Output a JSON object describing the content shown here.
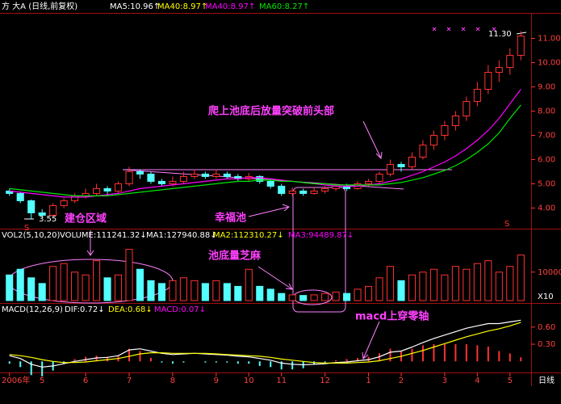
{
  "chart_data": [
    {
      "type": "candlestick",
      "title": "方  大A (日线,前复权)",
      "indicators": [
        {
          "label": "MA5:10.96↑",
          "color": "#ffffff"
        },
        {
          "label": "MA40:8.97↑",
          "color": "#ffff00"
        },
        {
          "label": "MA40:8.97↑",
          "color": "#ff00ff"
        },
        {
          "label": "MA60:8.27↑",
          "color": "#00e600"
        }
      ],
      "categories": [
        "2006年",
        null,
        null,
        "5",
        null,
        null,
        null,
        "6",
        null,
        null,
        null,
        "7",
        null,
        null,
        null,
        "8",
        null,
        null,
        null,
        "9",
        null,
        null,
        "10",
        null,
        null,
        "11",
        null,
        null,
        null,
        "12",
        null,
        null,
        null,
        "1",
        null,
        null,
        "2",
        null,
        null,
        null,
        "3",
        null,
        null,
        "4",
        null,
        null,
        "5",
        null
      ],
      "period_label": "日线",
      "up_color": "#ff3232",
      "down_color": "#54ffff",
      "candles": [
        [
          4.7,
          4.8,
          4.5,
          4.6
        ],
        [
          4.6,
          4.65,
          4.2,
          4.3
        ],
        [
          4.3,
          4.35,
          3.55,
          3.8
        ],
        [
          3.8,
          3.95,
          3.6,
          3.7
        ],
        [
          3.7,
          4.2,
          3.65,
          4.1
        ],
        [
          4.1,
          4.4,
          4.0,
          4.3
        ],
        [
          4.3,
          4.6,
          4.2,
          4.5
        ],
        [
          4.5,
          4.8,
          4.4,
          4.6
        ],
        [
          4.6,
          5.0,
          4.5,
          4.8
        ],
        [
          4.8,
          4.9,
          4.5,
          4.7
        ],
        [
          4.7,
          5.1,
          4.6,
          5.0
        ],
        [
          5.0,
          5.7,
          4.9,
          5.5
        ],
        [
          5.5,
          5.6,
          5.2,
          5.4
        ],
        [
          5.4,
          5.5,
          5.0,
          5.1
        ],
        [
          5.1,
          5.2,
          4.9,
          5.0
        ],
        [
          5.0,
          5.3,
          4.9,
          5.1
        ],
        [
          5.1,
          5.5,
          5.0,
          5.3
        ],
        [
          5.3,
          5.6,
          5.2,
          5.4
        ],
        [
          5.4,
          5.5,
          5.2,
          5.3
        ],
        [
          5.3,
          5.6,
          5.2,
          5.4
        ],
        [
          5.4,
          5.5,
          5.2,
          5.3
        ],
        [
          5.3,
          5.4,
          5.1,
          5.2
        ],
        [
          5.2,
          5.45,
          5.1,
          5.3
        ],
        [
          5.3,
          5.35,
          5.0,
          5.1
        ],
        [
          5.1,
          5.2,
          4.8,
          4.9
        ],
        [
          4.9,
          5.0,
          4.5,
          4.6
        ],
        [
          4.6,
          4.85,
          4.5,
          4.7
        ],
        [
          4.7,
          4.8,
          4.5,
          4.6
        ],
        [
          4.6,
          4.85,
          4.55,
          4.7
        ],
        [
          4.7,
          4.9,
          4.6,
          4.8
        ],
        [
          4.8,
          5.0,
          4.7,
          4.9
        ],
        [
          4.9,
          5.0,
          4.7,
          4.8
        ],
        [
          4.8,
          5.1,
          4.75,
          5.0
        ],
        [
          5.0,
          5.2,
          4.9,
          5.1
        ],
        [
          5.1,
          5.5,
          5.0,
          5.4
        ],
        [
          5.4,
          6.0,
          5.3,
          5.8
        ],
        [
          5.8,
          5.9,
          5.5,
          5.7
        ],
        [
          5.7,
          6.3,
          5.6,
          6.1
        ],
        [
          6.1,
          6.8,
          6.0,
          6.6
        ],
        [
          6.6,
          7.2,
          6.4,
          7.0
        ],
        [
          7.0,
          7.6,
          6.8,
          7.4
        ],
        [
          7.4,
          8.0,
          7.2,
          7.8
        ],
        [
          7.8,
          8.6,
          7.6,
          8.4
        ],
        [
          8.4,
          9.2,
          8.2,
          8.9
        ],
        [
          8.9,
          9.9,
          8.7,
          9.6
        ],
        [
          9.6,
          10.1,
          9.2,
          9.8
        ],
        [
          9.8,
          10.6,
          9.5,
          10.3
        ],
        [
          10.3,
          11.3,
          10.1,
          11.1
        ]
      ],
      "series": [
        {
          "color": "#ff00ff",
          "values": [
            4.7,
            4.65,
            4.6,
            4.55,
            4.5,
            4.45,
            4.45,
            4.45,
            4.5,
            4.55,
            4.6,
            4.7,
            4.8,
            4.85,
            4.9,
            4.95,
            5.0,
            5.05,
            5.1,
            5.15,
            5.2,
            5.2,
            5.25,
            5.25,
            5.2,
            5.15,
            5.1,
            5.05,
            5.0,
            4.95,
            4.9,
            4.9,
            4.9,
            4.95,
            5.0,
            5.1,
            5.2,
            5.35,
            5.5,
            5.7,
            5.9,
            6.15,
            6.45,
            6.8,
            7.2,
            7.7,
            8.3,
            8.9
          ]
        },
        {
          "color": "#00e600",
          "values": [
            4.8,
            4.75,
            4.7,
            4.65,
            4.6,
            4.55,
            4.5,
            4.5,
            4.5,
            4.5,
            4.55,
            4.6,
            4.65,
            4.7,
            4.75,
            4.8,
            4.85,
            4.9,
            4.95,
            5.0,
            5.05,
            5.1,
            5.1,
            5.15,
            5.15,
            5.1,
            5.1,
            5.05,
            5.0,
            5.0,
            4.95,
            4.95,
            4.95,
            4.95,
            4.95,
            5.0,
            5.05,
            5.15,
            5.25,
            5.4,
            5.55,
            5.75,
            6.0,
            6.3,
            6.65,
            7.1,
            7.7,
            8.25
          ]
        }
      ],
      "ylim": [
        3.18,
        11.92
      ],
      "yticks": [
        {
          "value": 4,
          "label": "4.00"
        },
        {
          "value": 5,
          "label": "5.00"
        },
        {
          "value": 6,
          "label": "6.00"
        },
        {
          "value": 7,
          "label": "7.00"
        },
        {
          "value": 8,
          "label": "8.00"
        },
        {
          "value": 9,
          "label": "9.00"
        },
        {
          "value": 10,
          "label": "10.00"
        },
        {
          "value": 11,
          "label": "11.00"
        }
      ],
      "annotations": [
        {
          "text": "3.55",
          "color": "#ffffff"
        },
        {
          "text": "11.30",
          "color": "#ffffff"
        },
        {
          "text": "S",
          "color": "#ff3030"
        },
        {
          "text": "S",
          "color": "#ff3030"
        },
        {
          "text": "建仓区域",
          "color": "#ff40ff"
        },
        {
          "text": "幸福池",
          "color": "#ff40ff"
        },
        {
          "text": "爬上池底后放量突破前头部",
          "color": "#ff40ff"
        }
      ]
    },
    {
      "type": "bar",
      "indicators": [
        {
          "label": "VOL2(5,10,20)",
          "color": "#ffffff"
        },
        {
          "label": "VOLUME:111241.32↓",
          "color": "#ffffff"
        },
        {
          "label": "MA1:127940.88↓",
          "color": "#ffffff"
        },
        {
          "label": "MA2:112310.27↓",
          "color": "#ffff00"
        },
        {
          "label": "MA3:94489.87↓",
          "color": "#ff00ff"
        }
      ],
      "values": [
        9000,
        11000,
        8000,
        6000,
        12000,
        13000,
        10000,
        9000,
        14000,
        8000,
        9000,
        18000,
        11000,
        7000,
        6000,
        7000,
        8000,
        7000,
        6000,
        7000,
        6000,
        5000,
        11000,
        5000,
        4000,
        2500,
        2000,
        1800,
        2000,
        2500,
        3000,
        2500,
        4000,
        5000,
        8000,
        12000,
        7000,
        9000,
        10000,
        11000,
        9000,
        12000,
        11000,
        13000,
        14000,
        10000,
        12000,
        16000
      ],
      "ylim": [
        0,
        21000
      ],
      "yticks": [
        10000
      ],
      "unit_label": "X10",
      "annotations": [
        {
          "text": "池底量芝麻",
          "color": "#ff40ff"
        }
      ]
    },
    {
      "type": "macd",
      "indicators": [
        {
          "label": "MACD(12,26,9)",
          "color": "#ffffff"
        },
        {
          "label": "DIF:0.72↓",
          "color": "#ffffff"
        },
        {
          "label": "DEA:0.68↓",
          "color": "#ffff00"
        },
        {
          "label": "MACD:0.07↓",
          "color": "#ff00ff"
        }
      ],
      "series": [
        {
          "color": "#ffffff",
          "values": [
            0.1,
            0.05,
            -0.05,
            -0.1,
            -0.08,
            -0.04,
            0.0,
            0.03,
            0.06,
            0.07,
            0.1,
            0.2,
            0.22,
            0.18,
            0.14,
            0.12,
            0.13,
            0.14,
            0.13,
            0.12,
            0.11,
            0.09,
            0.08,
            0.05,
            0.02,
            -0.03,
            -0.05,
            -0.06,
            -0.05,
            -0.04,
            -0.02,
            -0.01,
            0.01,
            0.03,
            0.08,
            0.16,
            0.18,
            0.25,
            0.33,
            0.4,
            0.46,
            0.52,
            0.58,
            0.62,
            0.66,
            0.66,
            0.69,
            0.72
          ]
        },
        {
          "color": "#ffff00",
          "values": [
            0.12,
            0.1,
            0.07,
            0.03,
            0.0,
            -0.02,
            -0.02,
            -0.01,
            0.01,
            0.03,
            0.05,
            0.09,
            0.13,
            0.15,
            0.15,
            0.14,
            0.14,
            0.14,
            0.14,
            0.13,
            0.12,
            0.11,
            0.1,
            0.09,
            0.07,
            0.04,
            0.02,
            0.0,
            -0.02,
            -0.03,
            -0.03,
            -0.03,
            -0.02,
            -0.01,
            0.01,
            0.05,
            0.09,
            0.14,
            0.19,
            0.25,
            0.31,
            0.37,
            0.43,
            0.48,
            0.53,
            0.57,
            0.62,
            0.68
          ]
        }
      ],
      "values": [
        -0.04,
        -0.1,
        -0.24,
        -0.26,
        -0.16,
        -0.04,
        0.04,
        0.08,
        0.1,
        0.08,
        0.1,
        0.22,
        0.18,
        0.06,
        -0.02,
        -0.04,
        -0.02,
        0.0,
        -0.02,
        -0.02,
        -0.02,
        -0.04,
        -0.04,
        -0.08,
        -0.1,
        -0.14,
        -0.14,
        -0.12,
        -0.06,
        -0.02,
        0.02,
        0.04,
        0.06,
        0.08,
        0.14,
        0.22,
        0.18,
        0.22,
        0.28,
        0.3,
        0.3,
        0.3,
        0.3,
        0.28,
        0.26,
        0.18,
        0.14,
        0.07
      ],
      "ylim": [
        -0.18,
        0.78
      ],
      "yticks": [
        {
          "value": 0.6,
          "label": "0.60"
        },
        {
          "value": 0.3,
          "label": "0.30"
        }
      ],
      "annotations": [
        {
          "text": "macd上穿零轴",
          "color": "#ff40ff"
        }
      ]
    }
  ]
}
